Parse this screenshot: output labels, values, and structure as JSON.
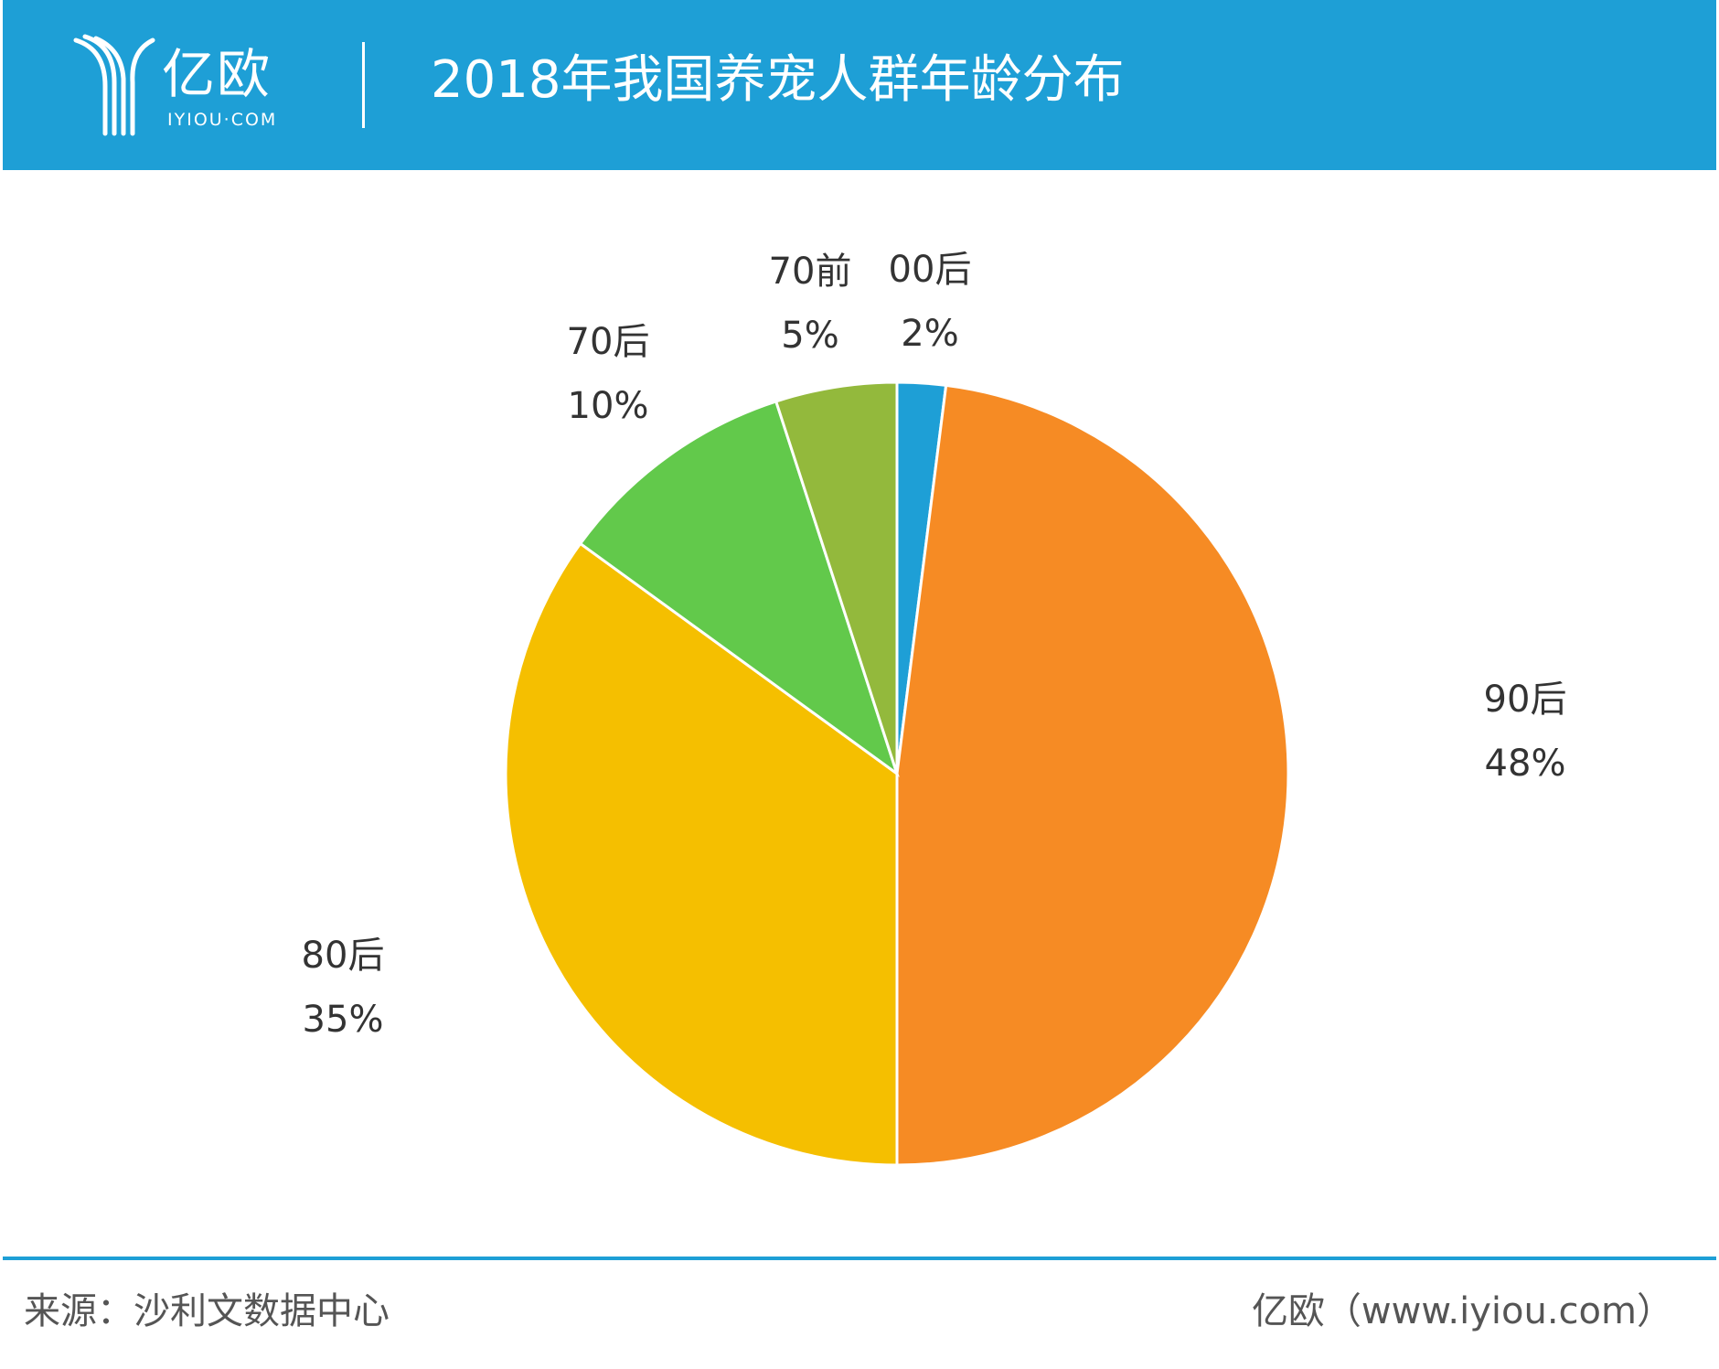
{
  "header": {
    "logo_text": "亿欧",
    "logo_subtext": "IYIOU·COM",
    "background_color": "#1e9fd6"
  },
  "chart_data": {
    "type": "pie",
    "title": "2018年我国养宠人群年龄分布",
    "unit": "%",
    "slices": [
      {
        "label": "00后",
        "value": 2,
        "value_label": "2%",
        "color": "#1e9fd6"
      },
      {
        "label": "90后",
        "value": 48,
        "value_label": "48%",
        "color": "#f68b24"
      },
      {
        "label": "80后",
        "value": 35,
        "value_label": "35%",
        "color": "#f5bf00"
      },
      {
        "label": "70后",
        "value": 10,
        "value_label": "10%",
        "color": "#62c94b"
      },
      {
        "label": "70前",
        "value": 5,
        "value_label": "5%",
        "color": "#93b93c"
      }
    ],
    "start": "12 o'clock",
    "direction": "clockwise"
  },
  "footer": {
    "source": "来源：沙利文数据中心",
    "site": "亿欧（www.iyiou.com）"
  }
}
